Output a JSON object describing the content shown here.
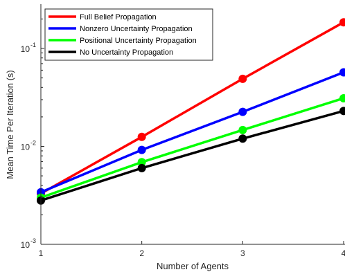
{
  "chart_data": {
    "type": "line",
    "title": "",
    "xlabel": "Number of Agents",
    "ylabel": "Mean Time Per Iteration (s)",
    "x": [
      1,
      2,
      3,
      4
    ],
    "xlim": [
      1,
      4
    ],
    "ylim": [
      0.001,
      0.3
    ],
    "yscale": "log",
    "x_ticks": [
      "1",
      "2",
      "3",
      "4"
    ],
    "y_ticks": [
      {
        "value": 0.001,
        "base": "10",
        "exp": "-3"
      },
      {
        "value": 0.01,
        "base": "10",
        "exp": "-2"
      },
      {
        "value": 0.1,
        "base": "10",
        "exp": "-1"
      }
    ],
    "grid": false,
    "legend_position": "top-left",
    "series": [
      {
        "name": "Full Belief Propagation",
        "color": "#ff0000",
        "values": [
          0.0033,
          0.0125,
          0.049,
          0.185
        ]
      },
      {
        "name": "Nonzero Uncertainty Propagation",
        "color": "#0000ff",
        "values": [
          0.0034,
          0.0092,
          0.0225,
          0.057
        ]
      },
      {
        "name": "Positional Uncertainty Propagation",
        "color": "#00ff00",
        "values": [
          0.003,
          0.0069,
          0.0147,
          0.031
        ]
      },
      {
        "name": "No Uncertainty Propagation",
        "color": "#000000",
        "values": [
          0.0028,
          0.006,
          0.012,
          0.023
        ]
      }
    ]
  }
}
